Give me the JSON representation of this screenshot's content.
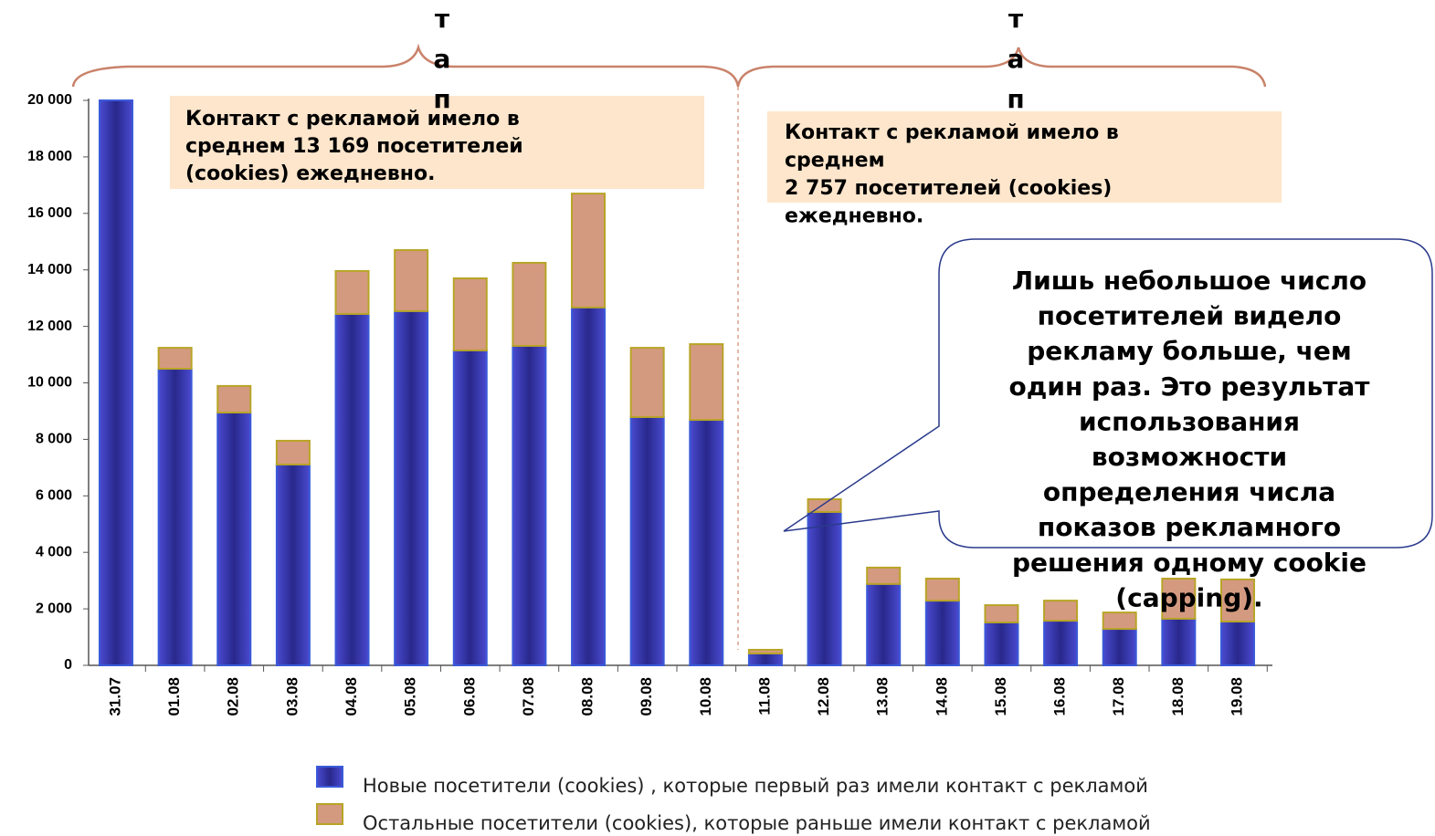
{
  "chart_data": {
    "type": "stacked_bar",
    "categories": [
      "31.07",
      "01.08",
      "02.08",
      "03.08",
      "04.08",
      "05.08",
      "06.08",
      "07.08",
      "08.08",
      "09.08",
      "10.08",
      "11.08",
      "12.08",
      "13.08",
      "14.08",
      "15.08",
      "16.08",
      "17.08",
      "18.08",
      "19.08"
    ],
    "series": [
      {
        "name": "Новые посетители (cookies) , которые первый раз имели контакт с рекламой",
        "color": "#28288c",
        "values": [
          20000,
          10500,
          8950,
          7110,
          12440,
          12540,
          11150,
          11310,
          12670,
          8790,
          8690,
          420,
          5430,
          2880,
          2290,
          1520,
          1580,
          1290,
          1650,
          1550
        ]
      },
      {
        "name": "Остальные посетители (cookies), которые  раньше имели контакт с рекламой",
        "color": "#d49a80",
        "values": [
          0,
          740,
          940,
          840,
          1520,
          2160,
          2550,
          2940,
          4030,
          2450,
          2680,
          130,
          450,
          580,
          780,
          610,
          710,
          580,
          1420,
          1490
        ]
      }
    ],
    "ylim": [
      0,
      20000
    ],
    "yticks": [
      0,
      {
        "value": 2000,
        "label": "2 000"
      },
      {
        "value": 4000,
        "label": "4 000"
      },
      {
        "value": 6000,
        "label": "6 000"
      },
      {
        "value": 8000,
        "label": "8 000"
      },
      {
        "value": 10000,
        "label": "10 000"
      },
      {
        "value": 12000,
        "label": "12 000"
      },
      {
        "value": 14000,
        "label": "14 000"
      },
      {
        "value": 16000,
        "label": "16 000"
      },
      {
        "value": 18000,
        "label": "18 000"
      },
      {
        "value": 20000,
        "label": "20 000"
      }
    ],
    "stages": [
      {
        "letters": [
          "т",
          "а",
          "п"
        ]
      },
      {
        "letters": [
          "т",
          "а",
          "п"
        ]
      }
    ],
    "notes": [
      {
        "lines": [
          "Контакт с рекламой имело в",
          "среднем 13 169 посетителей",
          "(cookies) ежедневно."
        ]
      },
      {
        "lines": [
          "Контакт с рекламой имело в",
          "среднем",
          "2 757 посетителей (cookies)",
          "ежедневно."
        ]
      }
    ],
    "callout": {
      "lines": [
        "Лишь небольшое число",
        "посетителей видело",
        "рекламу больше, чем",
        "один раз. Это результат",
        "использования",
        "возможности",
        "определения числа",
        "показов рекламного",
        "решения одному cookie",
        "(capping)."
      ]
    }
  }
}
